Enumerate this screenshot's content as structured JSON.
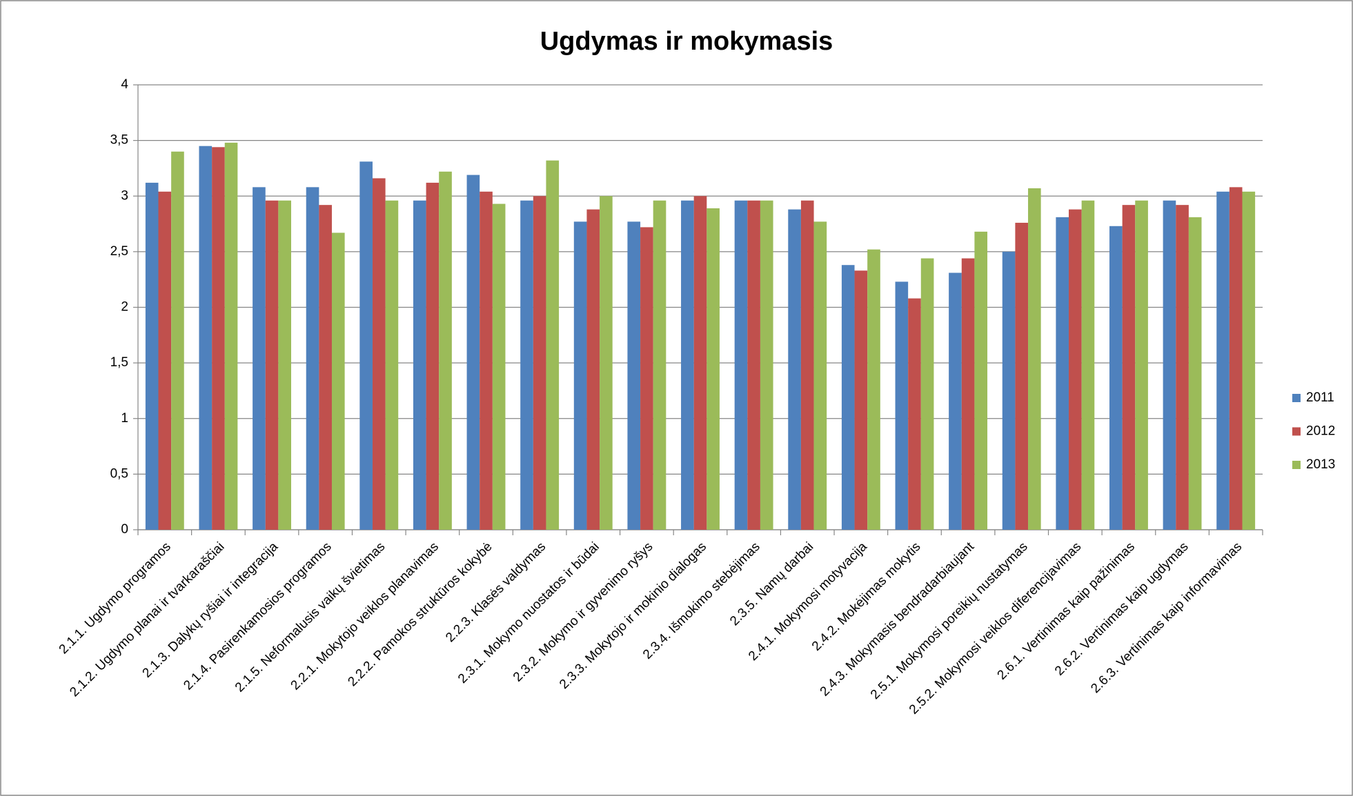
{
  "chart_data": {
    "type": "bar",
    "title": "Ugdymas ir mokymasis",
    "categories": [
      "2.1.1.  Ugdymo programos",
      "2.1.2. Ugdymo planai ir tvarkaraščiai",
      "2.1.3. Dalykų ryšiai ir integracija",
      "2.1.4. Pasirenkamosios programos",
      "2.1.5. Neformalusis vaikų švietimas",
      "2.2.1.  Mokytojo veiklos planavimas",
      "2.2.2. Pamokos struktūros kokybė",
      "2.2.3. Klasės valdymas",
      "2.3.1. Mokymo nuostatos ir būdai",
      "2.3.2. Mokymo ir gyvenimo ryšys",
      "2.3.3. Mokytojo ir mokinio dialogas",
      "2.3.4. Išmokimo stebėjimas",
      "2.3.5. Namų darbai",
      "2.4.1. Mokymosi motyvacija",
      "2.4.2. Mokėjimas mokytis",
      "2.4.3. Mokymasis bendradarbiaujant",
      "2.5.1. Mokymosi poreikių nustatymas",
      "2.5.2. Mokymosi veiklos diferencijavimas",
      "2.6.1. Vertinimas kaip pažinimas",
      "2.6.2. Vertinimas kaip ugdymas",
      "2.6.3. Vertinimas kaip informavimas"
    ],
    "series": [
      {
        "name": "2011",
        "color": "#4f81bd",
        "values": [
          3.12,
          3.45,
          3.08,
          3.08,
          3.31,
          2.96,
          3.19,
          2.96,
          2.77,
          2.77,
          2.96,
          2.96,
          2.88,
          2.38,
          2.23,
          2.31,
          2.5,
          2.81,
          2.73,
          2.96,
          3.04
        ]
      },
      {
        "name": "2012",
        "color": "#c0504d",
        "values": [
          3.04,
          3.44,
          2.96,
          2.92,
          3.16,
          3.12,
          3.04,
          3.0,
          2.88,
          2.72,
          3.0,
          2.96,
          2.96,
          2.33,
          2.08,
          2.44,
          2.76,
          2.88,
          2.92,
          2.92,
          3.08
        ]
      },
      {
        "name": "2013",
        "color": "#9bbb59",
        "values": [
          3.4,
          3.48,
          2.96,
          2.67,
          2.96,
          3.22,
          2.93,
          3.32,
          3.0,
          2.96,
          2.89,
          2.96,
          2.77,
          2.52,
          2.44,
          2.68,
          3.07,
          2.96,
          2.96,
          2.81,
          3.04
        ]
      }
    ],
    "ylim": [
      0,
      4
    ],
    "yticks": [
      0,
      {
        "value": 0.5,
        "label": "0,5"
      },
      1,
      {
        "value": 1.5,
        "label": "1,5"
      },
      2,
      {
        "value": 2.5,
        "label": "2,5"
      },
      3,
      {
        "value": 3.5,
        "label": "3,5"
      },
      4
    ],
    "grid": true,
    "legend": "right"
  }
}
